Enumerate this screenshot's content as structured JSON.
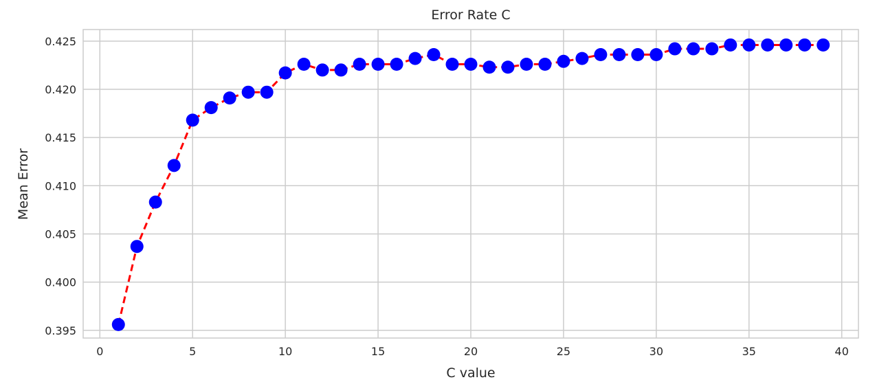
{
  "chart_data": {
    "type": "line",
    "title": "Error Rate C",
    "xlabel": "C value",
    "ylabel": "Mean Error",
    "xlim": [
      -0.9,
      40.9
    ],
    "ylim": [
      0.3942,
      0.4262
    ],
    "xticks": [
      0,
      5,
      10,
      15,
      20,
      25,
      30,
      35,
      40
    ],
    "yticks": [
      0.395,
      0.4,
      0.405,
      0.41,
      0.415,
      0.42,
      0.425
    ],
    "ytick_labels": [
      "0.395",
      "0.400",
      "0.405",
      "0.410",
      "0.415",
      "0.420",
      "0.425"
    ],
    "grid": true,
    "line_color": "#ff0000",
    "line_style": "dashed",
    "marker_color": "#0000ff",
    "grid_color": "#cccccc",
    "x": [
      1,
      2,
      3,
      4,
      5,
      6,
      7,
      8,
      9,
      10,
      11,
      12,
      13,
      14,
      15,
      16,
      17,
      18,
      19,
      20,
      21,
      22,
      23,
      24,
      25,
      26,
      27,
      28,
      29,
      30,
      31,
      32,
      33,
      34,
      35,
      36,
      37,
      38,
      39
    ],
    "y": [
      0.3956,
      0.4037,
      0.4083,
      0.4121,
      0.4168,
      0.4181,
      0.4191,
      0.4197,
      0.4197,
      0.4217,
      0.4226,
      0.422,
      0.422,
      0.4226,
      0.4226,
      0.4226,
      0.4232,
      0.4236,
      0.4226,
      0.4226,
      0.4223,
      0.4223,
      0.4226,
      0.4226,
      0.4229,
      0.4232,
      0.4236,
      0.4236,
      0.4236,
      0.4236,
      0.4242,
      0.4242,
      0.4242,
      0.4246,
      0.4246,
      0.4246,
      0.4246,
      0.4246,
      0.4246
    ]
  }
}
